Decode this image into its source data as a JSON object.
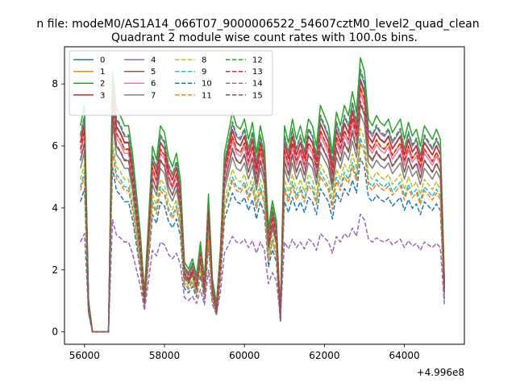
{
  "chart_data": {
    "type": "line",
    "suptitle": "n file: modeM0/AS1A14_066T07_9000006522_54607cztM0_level2_quad_clean",
    "title": "Quadrant 2 module wise count rates with 100.0s bins.",
    "xlabel": "",
    "ylabel": "",
    "x_offset_label": "+4.996e8",
    "xlim": [
      55500,
      65500
    ],
    "ylim": [
      -0.4,
      9.2
    ],
    "x_ticks": [
      56000,
      58000,
      60000,
      62000,
      64000
    ],
    "x_tick_labels": [
      "56000",
      "58000",
      "60000",
      "62000",
      "64000"
    ],
    "y_ticks": [
      0,
      2,
      4,
      6,
      8
    ],
    "y_tick_labels": [
      "0",
      "2",
      "4",
      "6",
      "8"
    ],
    "grid": false,
    "legend_position": "top-left",
    "legend_columns": 4,
    "x": [
      55900,
      56000,
      56100,
      56200,
      56300,
      56400,
      56500,
      56600,
      56700,
      56800,
      56900,
      57000,
      57100,
      57200,
      57300,
      57400,
      57500,
      57600,
      57700,
      57800,
      57900,
      58000,
      58100,
      58200,
      58300,
      58400,
      58500,
      58600,
      58700,
      58800,
      58900,
      59000,
      59100,
      59200,
      59300,
      59400,
      59500,
      59600,
      59700,
      59800,
      59900,
      60000,
      60100,
      60200,
      60300,
      60400,
      60500,
      60600,
      60700,
      60800,
      60900,
      61000,
      61100,
      61200,
      61300,
      61400,
      61500,
      61600,
      61700,
      61800,
      61900,
      62000,
      62100,
      62200,
      62300,
      62400,
      62500,
      62600,
      62700,
      62800,
      62900,
      63000,
      63100,
      63200,
      63300,
      63400,
      63500,
      63600,
      63700,
      63800,
      63900,
      64000,
      64100,
      64200,
      64300,
      64400,
      64500,
      64600,
      64700,
      64800,
      64900,
      65000
    ],
    "base_profile": [
      6.0,
      6.6,
      0.9,
      0.0,
      0.0,
      0.0,
      0.0,
      0.0,
      7.6,
      6.5,
      6.3,
      6.0,
      6.0,
      5.2,
      4.0,
      2.8,
      1.1,
      3.2,
      5.4,
      5.0,
      6.0,
      5.8,
      5.1,
      4.8,
      5.2,
      4.4,
      2.0,
      1.8,
      2.1,
      1.6,
      2.6,
      1.5,
      4.0,
      1.5,
      0.8,
      2.4,
      5.2,
      5.8,
      6.4,
      6.0,
      5.9,
      6.2,
      5.6,
      6.1,
      5.2,
      6.0,
      5.4,
      3.0,
      3.8,
      3.2,
      0.5,
      6.0,
      5.5,
      6.2,
      5.6,
      6.0,
      5.5,
      6.2,
      6.0,
      5.4,
      6.6,
      6.3,
      6.0,
      5.2,
      6.4,
      6.0,
      6.6,
      6.3,
      7.0,
      6.4,
      8.0,
      7.6,
      6.2,
      6.0,
      6.3,
      6.1,
      6.0,
      6.2,
      5.8,
      6.0,
      6.2,
      5.6,
      6.1,
      5.7,
      5.9,
      5.4,
      6.0,
      5.8,
      5.6,
      5.9,
      5.6,
      1.5
    ],
    "series": [
      {
        "name": "0",
        "color": "#1f77b4",
        "style": "solid",
        "scale": 1.02,
        "offset": 0.0
      },
      {
        "name": "1",
        "color": "#ff7f0e",
        "style": "solid",
        "scale": 0.98,
        "offset": 0.0
      },
      {
        "name": "2",
        "color": "#2ca02c",
        "style": "solid",
        "scale": 1.1,
        "offset": 0.05
      },
      {
        "name": "3",
        "color": "#d62728",
        "style": "solid",
        "scale": 1.0,
        "offset": 0.1
      },
      {
        "name": "4",
        "color": "#9467bd",
        "style": "solid",
        "scale": 1.05,
        "offset": 0.0
      },
      {
        "name": "5",
        "color": "#8c564b",
        "style": "solid",
        "scale": 0.92,
        "offset": 0.0
      },
      {
        "name": "6",
        "color": "#e377c2",
        "style": "solid",
        "scale": 0.96,
        "offset": 0.0
      },
      {
        "name": "7",
        "color": "#7f7f7f",
        "style": "solid",
        "scale": 0.88,
        "offset": 0.0
      },
      {
        "name": "8",
        "color": "#bcbd22",
        "style": "dashed",
        "scale": 0.82,
        "offset": 0.0
      },
      {
        "name": "9",
        "color": "#17becf",
        "style": "dashed",
        "scale": 0.78,
        "offset": 0.0
      },
      {
        "name": "10",
        "color": "#1f77b4",
        "style": "dashed",
        "scale": 0.7,
        "offset": 0.0
      },
      {
        "name": "11",
        "color": "#ff7f0e",
        "style": "dashed",
        "scale": 0.76,
        "offset": 0.0
      },
      {
        "name": "12",
        "color": "#2ca02c",
        "style": "dashed",
        "scale": 1.06,
        "offset": 0.0
      },
      {
        "name": "13",
        "color": "#d62728",
        "style": "dashed",
        "scale": 1.0,
        "offset": -0.1
      },
      {
        "name": "14",
        "color": "#9467bd",
        "style": "dashed",
        "scale": 0.45,
        "offset": 0.2
      },
      {
        "name": "15",
        "color": "#8c564b",
        "style": "dashed",
        "scale": 0.95,
        "offset": -0.15
      }
    ]
  }
}
